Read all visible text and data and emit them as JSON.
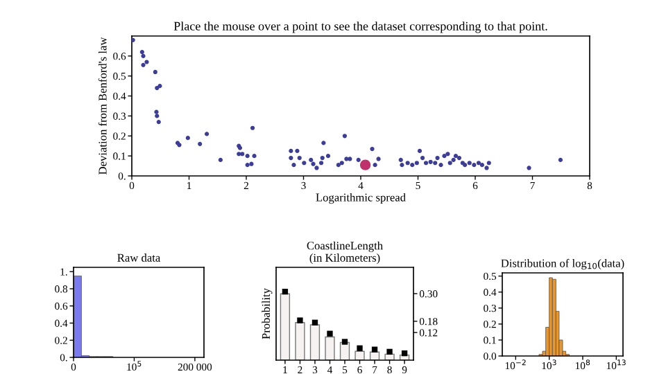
{
  "chart_data": [
    {
      "type": "scatter",
      "title": "Place the mouse over a point to see the dataset corresponding to that point.",
      "xlabel": "Logarithmic spread",
      "ylabel": "Deviation from Benford's law",
      "marker": "circle",
      "grid": false,
      "xlim": [
        0,
        8
      ],
      "xticks": [
        0,
        1,
        2,
        3,
        4,
        5,
        6,
        7,
        8
      ],
      "ylim": [
        0,
        0.7
      ],
      "yticks": [
        {
          "value": 0,
          "label": "0."
        },
        0.1,
        0.2,
        0.3,
        0.4,
        0.5,
        0.6
      ],
      "series": [
        {
          "color": "#3c3c9a",
          "x": [
            0.02,
            0.18,
            0.2,
            0.2,
            0.26,
            0.41,
            0.44,
            0.49,
            0.43,
            0.44,
            0.47,
            0.8,
            0.83,
            0.98,
            1.19,
            1.31,
            1.55,
            1.87,
            1.89,
            1.87,
            1.93,
            2.02,
            2.02,
            2.09,
            2.11,
            2.14,
            2.78,
            2.89,
            2.78,
            2.83,
            2.93,
            3.01,
            3.13,
            3.17,
            3.23,
            3.31,
            3.35,
            3.33,
            3.43,
            3.61,
            3.67,
            3.72,
            3.75,
            3.81,
            3.96,
            4.2,
            4.25,
            4.31,
            4.7,
            4.72,
            4.82,
            4.9,
            4.98,
            5.03,
            5.08,
            5.14,
            5.22,
            5.3,
            5.34,
            5.4,
            5.46,
            5.52,
            5.56,
            5.62,
            5.66,
            5.72,
            5.78,
            5.82,
            5.9,
            5.98,
            6.06,
            6.12,
            6.2,
            6.24,
            6.94,
            7.49
          ],
          "values": [
            0.68,
            0.62,
            0.6,
            0.555,
            0.57,
            0.52,
            0.44,
            0.45,
            0.32,
            0.3,
            0.27,
            0.165,
            0.155,
            0.19,
            0.16,
            0.21,
            0.08,
            0.15,
            0.14,
            0.11,
            0.11,
            0.1,
            0.055,
            0.06,
            0.24,
            0.1,
            0.125,
            0.125,
            0.09,
            0.055,
            0.09,
            0.065,
            0.08,
            0.06,
            0.04,
            0.065,
            0.165,
            0.09,
            0.1,
            0.055,
            0.065,
            0.2,
            0.085,
            0.085,
            0.08,
            0.135,
            0.055,
            0.085,
            0.08,
            0.055,
            0.065,
            0.055,
            0.065,
            0.125,
            0.09,
            0.065,
            0.07,
            0.065,
            0.09,
            0.055,
            0.1,
            0.11,
            0.065,
            0.08,
            0.1,
            0.09,
            0.065,
            0.055,
            0.065,
            0.055,
            0.065,
            0.055,
            0.04,
            0.065,
            0.04,
            0.08
          ]
        },
        {
          "color": "#c0306a",
          "x": [
            4.08
          ],
          "values": [
            0.055
          ]
        }
      ]
    },
    {
      "type": "histogram",
      "title": "Raw data",
      "grid": false,
      "xlim": [
        0,
        215000
      ],
      "xticks": [
        0,
        {
          "value": 100000,
          "label": "10$^{5}$"
        },
        {
          "value": 200000,
          "label": "200 000"
        }
      ],
      "ylim": [
        0,
        1.05
      ],
      "yticks": [
        {
          "value": 0,
          "label": "0."
        },
        0.2,
        0.4,
        0.6,
        0.8,
        {
          "value": 1,
          "label": "1."
        }
      ],
      "bins": [
        0,
        13000,
        26000,
        39000,
        52000,
        65000
      ],
      "values": [
        0.95,
        0.02,
        0.01,
        0.01,
        0.01
      ],
      "colors": [
        "#7b7bf0",
        "#7b7bf0",
        "#a0a0a0",
        "#a0a0a0",
        "#a0a0a0"
      ]
    },
    {
      "type": "bar",
      "title": "CoastlineLength\n(in Kilometers)",
      "ylabel": "Probability",
      "grid": false,
      "marker": "square",
      "categories": [
        "1",
        "2",
        "3",
        "4",
        "5",
        "6",
        "7",
        "8",
        "9"
      ],
      "ylim": [
        0,
        0.42
      ],
      "yticks": [
        {
          "value": 0.301,
          "label": "0.30"
        },
        {
          "value": 0.176,
          "label": "0.18"
        },
        {
          "value": 0.125,
          "label": "0.12"
        }
      ],
      "series": [
        {
          "color": "#f6f2f2",
          "values": [
            0.3,
            0.17,
            0.16,
            0.105,
            0.08,
            0.04,
            0.037,
            0.027,
            0.023
          ]
        },
        {
          "type": "scatter",
          "color": "#000000",
          "values": [
            0.31,
            0.18,
            0.17,
            0.12,
            0.083,
            0.054,
            0.048,
            0.038,
            0.031
          ]
        }
      ]
    },
    {
      "type": "histogram",
      "title": "Distribution of log$_{10}$(data)",
      "grid": false,
      "log": "x",
      "xlim": [
        0.0001,
        100000000000000
      ],
      "xticks": [
        {
          "value": 0.01,
          "label": "10$^{−2}$"
        },
        {
          "value": 1000,
          "label": "10$^{3}$"
        },
        {
          "value": 100000000,
          "label": "10$^{8}$"
        },
        {
          "value": 10000000000000,
          "label": "10$^{13}$"
        }
      ],
      "ylim": [
        0,
        0.52
      ],
      "yticks": [
        {
          "value": 0,
          "label": "0.0"
        },
        0.1,
        0.2,
        0.3,
        0.4,
        0.5
      ],
      "bins": [
        30,
        100,
        300,
        1000,
        3000,
        10000,
        30000,
        100000,
        300000,
        1000000
      ],
      "values": [
        0.01,
        0.03,
        0.18,
        0.49,
        0.48,
        0.28,
        0.1,
        0.03,
        0.01
      ],
      "color": "#e8962e"
    }
  ]
}
